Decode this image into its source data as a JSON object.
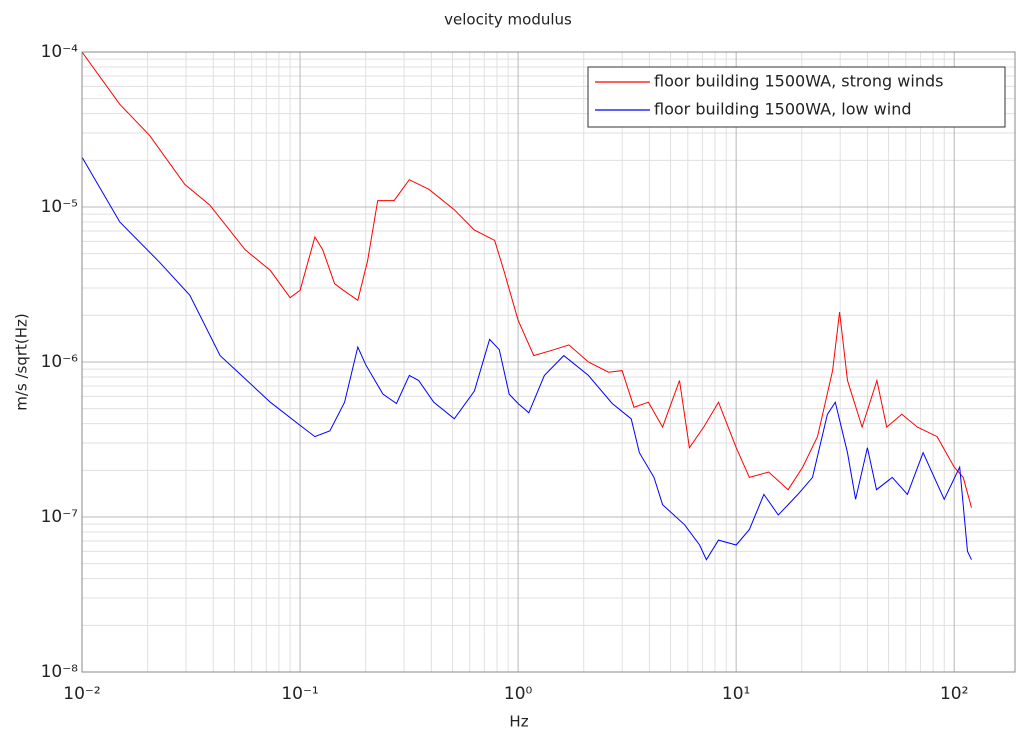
{
  "chart_data": {
    "type": "line",
    "title": "velocity modulus",
    "xlabel": "Hz",
    "ylabel": "m/s /sqrt(Hz)",
    "xscale": "log",
    "yscale": "log",
    "grid": true,
    "minor_grid": true,
    "legend": "upper right",
    "xlim": [
      0.01,
      190
    ],
    "ylim": [
      1e-08,
      0.0001
    ],
    "xticks": [
      {
        "value": 0.01,
        "label": "10⁻²"
      },
      {
        "value": 0.1,
        "label": "10⁻¹"
      },
      {
        "value": 1,
        "label": "10⁰"
      },
      {
        "value": 10,
        "label": "10¹"
      },
      {
        "value": 100,
        "label": "10²"
      }
    ],
    "yticks": [
      {
        "value": 1e-08,
        "label": "10⁻⁸"
      },
      {
        "value": 1e-07,
        "label": "10⁻⁷"
      },
      {
        "value": 1e-06,
        "label": "10⁻⁶"
      },
      {
        "value": 1e-05,
        "label": "10⁻⁵"
      },
      {
        "value": 0.0001,
        "label": "10⁻⁴"
      }
    ],
    "series": [
      {
        "name": "floor building 1500WA, strong winds",
        "color": "#ff0000",
        "x": [
          0.01,
          0.0149,
          0.0204,
          0.0296,
          0.0385,
          0.056,
          0.073,
          0.09,
          0.1,
          0.117,
          0.127,
          0.144,
          0.158,
          0.184,
          0.204,
          0.227,
          0.27,
          0.317,
          0.39,
          0.51,
          0.63,
          0.78,
          0.86,
          1.0,
          1.18,
          1.46,
          1.71,
          2.1,
          2.6,
          3.0,
          3.4,
          3.96,
          4.6,
          5.5,
          6.1,
          7.1,
          8.3,
          10,
          11.5,
          14.1,
          17.3,
          20.2,
          23.6,
          27.7,
          29.8,
          32.4,
          37.8,
          44.2,
          49,
          57.5,
          67.8,
          83.5,
          100,
          110,
          120
        ],
        "values": [
          0.0001,
          4.6e-05,
          2.9e-05,
          1.4e-05,
          1.03e-05,
          5.3e-06,
          3.9e-06,
          2.6e-06,
          2.9e-06,
          6.4e-06,
          5.3e-06,
          3.2e-06,
          2.9e-06,
          2.5e-06,
          4.5e-06,
          1.1e-05,
          1.1e-05,
          1.5e-05,
          1.3e-05,
          9.6e-06,
          7.1e-06,
          6.1e-06,
          3.9e-06,
          1.86e-06,
          1.1e-06,
          1.2e-06,
          1.29e-06,
          1e-06,
          8.6e-07,
          8.8e-07,
          5.1e-07,
          5.5e-07,
          3.8e-07,
          7.6e-07,
          2.8e-07,
          3.8e-07,
          5.5e-07,
          2.8e-07,
          1.8e-07,
          1.95e-07,
          1.5e-07,
          2.1e-07,
          3.3e-07,
          8.8e-07,
          2.1e-06,
          7.6e-07,
          3.8e-07,
          7.6e-07,
          3.8e-07,
          4.6e-07,
          3.8e-07,
          3.3e-07,
          2.1e-07,
          1.8e-07,
          1.15e-07
        ]
      },
      {
        "name": "floor building 1500WA, low wind",
        "color": "#0000ff",
        "x": [
          0.01,
          0.0149,
          0.0227,
          0.0312,
          0.043,
          0.052,
          0.073,
          0.1,
          0.117,
          0.137,
          0.16,
          0.184,
          0.2,
          0.24,
          0.277,
          0.317,
          0.35,
          0.41,
          0.51,
          0.63,
          0.74,
          0.82,
          0.91,
          1,
          1.12,
          1.32,
          1.62,
          2.1,
          2.7,
          3.3,
          3.6,
          4.2,
          4.6,
          5.8,
          6.8,
          7.3,
          8.3,
          10,
          11.5,
          13.4,
          15.6,
          19.2,
          22.4,
          26.2,
          28.5,
          32.4,
          35.3,
          40,
          44,
          52,
          61,
          72,
          90,
          106,
          115,
          120
        ],
        "values": [
          2.1e-05,
          8e-06,
          4.4e-06,
          2.7e-06,
          1.1e-06,
          8.6e-07,
          5.5e-07,
          3.9e-07,
          3.3e-07,
          3.6e-07,
          5.5e-07,
          1.25e-06,
          9.6e-07,
          6.2e-07,
          5.4e-07,
          8.2e-07,
          7.6e-07,
          5.5e-07,
          4.3e-07,
          6.5e-07,
          1.4e-06,
          1.2e-06,
          6.2e-07,
          5.4e-07,
          4.7e-07,
          8.2e-07,
          1.1e-06,
          8.2e-07,
          5.4e-07,
          4.3e-07,
          2.6e-07,
          1.8e-07,
          1.2e-07,
          8.9e-08,
          6.6e-08,
          5.3e-08,
          7.1e-08,
          6.6e-08,
          8.3e-08,
          1.4e-07,
          1.03e-07,
          1.4e-07,
          1.8e-07,
          4.6e-07,
          5.5e-07,
          2.6e-07,
          1.3e-07,
          2.8e-07,
          1.5e-07,
          1.8e-07,
          1.4e-07,
          2.6e-07,
          1.3e-07,
          2.1e-07,
          6e-08,
          5.3e-08
        ]
      }
    ]
  }
}
